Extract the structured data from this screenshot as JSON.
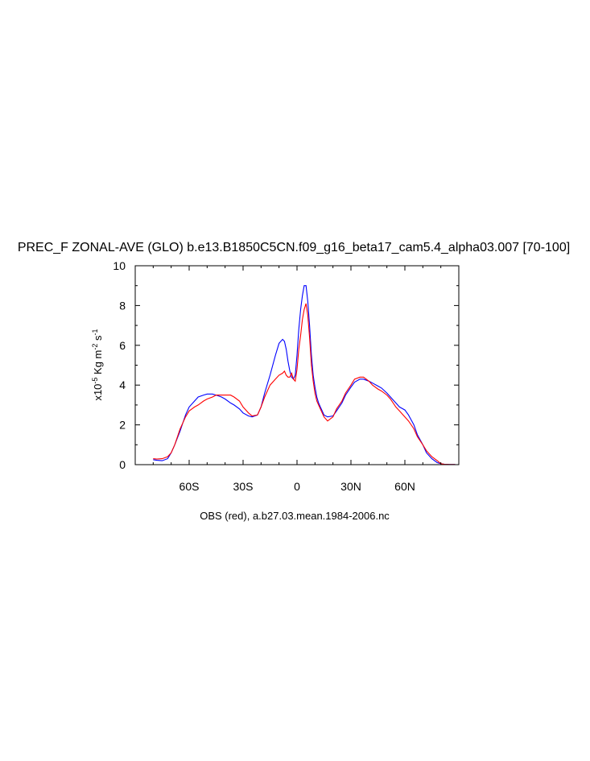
{
  "chart_data": {
    "type": "line",
    "title": "PREC_F ZONAL-AVE (GLO) b.e13.B1850C5CN.f09_g16_beta17_cam5.4_alpha03.007 [70-100]",
    "ylabel_prefix": "x10",
    "ylabel_exp1": "-5",
    "ylabel_mid": " Kg m",
    "ylabel_exp2": "-2",
    "ylabel_mid2": " s",
    "ylabel_exp3": "-1",
    "caption": "OBS (red), a.b27.03.mean.1984-2006.nc",
    "xlim": [
      -90,
      90
    ],
    "ylim": [
      0,
      10
    ],
    "x_ticks": [
      {
        "value": -60,
        "label": "60S"
      },
      {
        "value": -30,
        "label": "30S"
      },
      {
        "value": 0,
        "label": "0"
      },
      {
        "value": 30,
        "label": "30N"
      },
      {
        "value": 60,
        "label": "60N"
      }
    ],
    "y_ticks": [
      {
        "value": 0,
        "label": "0"
      },
      {
        "value": 2,
        "label": "2"
      },
      {
        "value": 4,
        "label": "4"
      },
      {
        "value": 6,
        "label": "6"
      },
      {
        "value": 8,
        "label": "8"
      },
      {
        "value": 10,
        "label": "10"
      }
    ],
    "series": [
      {
        "color": "#0000ff",
        "x": [
          -80,
          -78,
          -75,
          -72,
          -70,
          -68,
          -65,
          -62,
          -60,
          -57,
          -55,
          -52,
          -50,
          -47,
          -45,
          -42,
          -40,
          -37,
          -35,
          -32,
          -30,
          -27,
          -25,
          -22,
          -20,
          -18,
          -15,
          -12,
          -10,
          -8,
          -7,
          -6,
          -5,
          -4,
          -3,
          -2,
          -1,
          0,
          1,
          2,
          3,
          4,
          5,
          6,
          7,
          8,
          9,
          10,
          11,
          12,
          13,
          14,
          15,
          17,
          20,
          22,
          25,
          27,
          30,
          32,
          35,
          37,
          40,
          42,
          45,
          47,
          50,
          52,
          55,
          57,
          60,
          62,
          65,
          67,
          70,
          72,
          75,
          78,
          80,
          82,
          85,
          88
        ],
        "y": [
          0.25,
          0.22,
          0.2,
          0.3,
          0.6,
          1.0,
          1.7,
          2.5,
          2.9,
          3.2,
          3.4,
          3.5,
          3.55,
          3.55,
          3.5,
          3.4,
          3.3,
          3.1,
          3.0,
          2.8,
          2.6,
          2.45,
          2.4,
          2.5,
          2.9,
          3.6,
          4.5,
          5.5,
          6.1,
          6.3,
          6.2,
          5.8,
          5.2,
          4.7,
          4.4,
          4.3,
          4.5,
          5.5,
          6.8,
          7.8,
          8.5,
          9.0,
          9.0,
          8.2,
          7.0,
          5.5,
          4.5,
          3.9,
          3.4,
          3.1,
          2.9,
          2.7,
          2.5,
          2.4,
          2.45,
          2.7,
          3.1,
          3.5,
          3.9,
          4.15,
          4.3,
          4.3,
          4.2,
          4.1,
          3.95,
          3.85,
          3.6,
          3.4,
          3.1,
          2.9,
          2.75,
          2.5,
          2.0,
          1.5,
          1.0,
          0.6,
          0.3,
          0.1,
          0.05,
          0.02,
          0.01,
          0.01
        ]
      },
      {
        "color": "#ff0000",
        "x": [
          -80,
          -78,
          -75,
          -72,
          -70,
          -68,
          -65,
          -62,
          -60,
          -57,
          -55,
          -52,
          -50,
          -47,
          -45,
          -42,
          -40,
          -37,
          -35,
          -32,
          -30,
          -27,
          -25,
          -22,
          -20,
          -18,
          -15,
          -12,
          -10,
          -8,
          -7,
          -6,
          -5,
          -4,
          -3,
          -2,
          -1,
          0,
          1,
          2,
          3,
          4,
          5,
          6,
          7,
          8,
          9,
          10,
          11,
          12,
          13,
          14,
          15,
          17,
          20,
          22,
          25,
          27,
          30,
          32,
          35,
          37,
          40,
          42,
          45,
          47,
          50,
          52,
          55,
          57,
          60,
          62,
          65,
          67,
          70,
          72,
          75,
          78,
          80,
          82,
          85,
          88
        ],
        "y": [
          0.3,
          0.28,
          0.3,
          0.4,
          0.6,
          1.0,
          1.8,
          2.4,
          2.7,
          2.9,
          3.0,
          3.2,
          3.3,
          3.4,
          3.5,
          3.5,
          3.5,
          3.5,
          3.4,
          3.2,
          2.9,
          2.6,
          2.45,
          2.5,
          2.9,
          3.4,
          4.0,
          4.3,
          4.5,
          4.6,
          4.7,
          4.5,
          4.4,
          4.4,
          4.6,
          4.3,
          4.2,
          4.8,
          5.8,
          6.5,
          7.3,
          7.8,
          8.1,
          7.5,
          6.4,
          5.0,
          4.2,
          3.6,
          3.2,
          3.0,
          2.8,
          2.6,
          2.4,
          2.2,
          2.4,
          2.8,
          3.2,
          3.6,
          4.0,
          4.3,
          4.4,
          4.4,
          4.2,
          4.0,
          3.8,
          3.7,
          3.5,
          3.3,
          2.9,
          2.7,
          2.4,
          2.2,
          1.8,
          1.4,
          1.0,
          0.7,
          0.4,
          0.2,
          0.05,
          0.02,
          0.01,
          0.01
        ]
      }
    ]
  }
}
